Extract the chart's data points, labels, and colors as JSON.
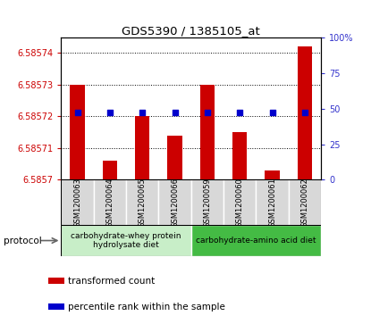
{
  "title": "GDS5390 / 1385105_at",
  "samples": [
    "GSM1200063",
    "GSM1200064",
    "GSM1200065",
    "GSM1200066",
    "GSM1200059",
    "GSM1200060",
    "GSM1200061",
    "GSM1200062"
  ],
  "transformed_count": [
    6.58573,
    6.585706,
    6.58572,
    6.585714,
    6.58573,
    6.585715,
    6.585703,
    6.585742
  ],
  "percentile_rank": [
    47,
    47,
    47,
    47,
    47,
    47,
    47,
    47
  ],
  "y_min": 6.5857,
  "y_max": 6.585745,
  "y_ticks": [
    6.5857,
    6.58571,
    6.58572,
    6.58573,
    6.58574
  ],
  "y_tick_labels": [
    "6.5857",
    "6.58571",
    "6.58572",
    "6.58573",
    "6.58574"
  ],
  "right_y_ticks": [
    0,
    25,
    50,
    75,
    100
  ],
  "right_y_labels": [
    "0",
    "25",
    "50",
    "75",
    "100%"
  ],
  "bar_color": "#cc0000",
  "dot_color": "#0000cc",
  "protocol_groups": [
    {
      "label": "carbohydrate-whey protein\nhydrolysate diet",
      "start": 0,
      "end": 4,
      "color": "#c8eec8"
    },
    {
      "label": "carbohydrate-amino acid diet",
      "start": 4,
      "end": 8,
      "color": "#44bb44"
    }
  ],
  "legend_items": [
    {
      "color": "#cc0000",
      "label": "transformed count"
    },
    {
      "color": "#0000cc",
      "label": "percentile rank within the sample"
    }
  ],
  "protocol_label": "protocol",
  "left_color": "#cc0000",
  "right_color": "#3333cc",
  "bg_color": "#d8d8d8",
  "fig_width": 4.15,
  "fig_height": 3.63
}
